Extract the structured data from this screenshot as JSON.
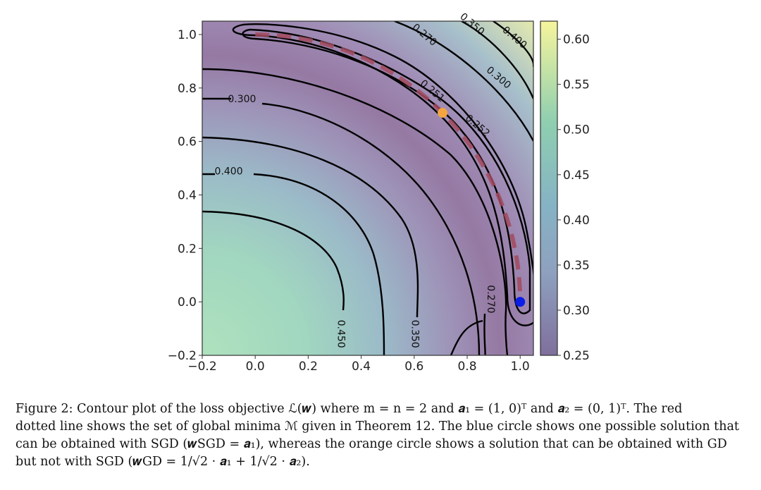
{
  "chart_data": {
    "type": "heatmap",
    "subtype": "contour",
    "xlabel": "",
    "ylabel": "",
    "xlim": [
      -0.2,
      1.05
    ],
    "ylim": [
      -0.2,
      1.05
    ],
    "x_ticks": [
      "−0.2",
      "0.0",
      "0.2",
      "0.4",
      "0.6",
      "0.8",
      "1.0"
    ],
    "y_ticks": [
      "−0.2",
      "0.0",
      "0.2",
      "0.4",
      "0.6",
      "0.8",
      "1.0"
    ],
    "colorbar": {
      "range": [
        0.25,
        0.62
      ],
      "ticks": [
        "0.25",
        "0.30",
        "0.35",
        "0.40",
        "0.45",
        "0.50",
        "0.55",
        "0.60"
      ],
      "colormap": "viridis (semi-transparent)"
    },
    "contour_levels": [
      "0.251",
      "0.252",
      "0.270",
      "0.300",
      "0.350",
      "0.400",
      "0.450"
    ],
    "contour_labels": [
      {
        "text": "0.270",
        "x": 0.64,
        "y": 1.0
      },
      {
        "text": "0.350",
        "x": 0.82,
        "y": 1.04
      },
      {
        "text": "0.400",
        "x": 0.98,
        "y": 0.99
      },
      {
        "text": "0.251",
        "x": 0.67,
        "y": 0.79
      },
      {
        "text": "0.300",
        "x": 0.92,
        "y": 0.84
      },
      {
        "text": "0.252",
        "x": 0.84,
        "y": 0.66
      },
      {
        "text": "0.300",
        "x": -0.05,
        "y": 0.76
      },
      {
        "text": "0.400",
        "x": -0.1,
        "y": 0.49
      },
      {
        "text": "0.270",
        "x": 0.89,
        "y": 0.01
      },
      {
        "text": "0.450",
        "x": 0.325,
        "y": -0.12
      },
      {
        "text": "0.350",
        "x": 0.605,
        "y": -0.12
      }
    ],
    "minima_set_label": "set of global minima",
    "points": [
      {
        "name": "w_SGD",
        "x": 1.0,
        "y": 0.0,
        "color": "#0a1ee6"
      },
      {
        "name": "w_GD",
        "x": 0.7071,
        "y": 0.7071,
        "color": "#f5a540"
      }
    ],
    "colors": {
      "minima_curve": "#a24a5e",
      "contour": "#000000"
    }
  },
  "caption": {
    "line1": "Figure 2: Contour plot of the loss objective ℒ(𝒘) where m = n = 2 and 𝒂₁ = (1, 0)ᵀ and 𝒂₂ = (0, 1)ᵀ. The red",
    "line2": "dotted line shows the set of global minima ℳ given in Theorem 12. The blue circle shows one possible solution that",
    "line3": "can be obtained with SGD (𝒘SGD = 𝒂₁), whereas the orange circle shows a solution that can be obtained with GD",
    "line4": "but not with SGD (𝒘GD = 1/√2 · 𝒂₁ + 1/√2 · 𝒂₂)."
  }
}
